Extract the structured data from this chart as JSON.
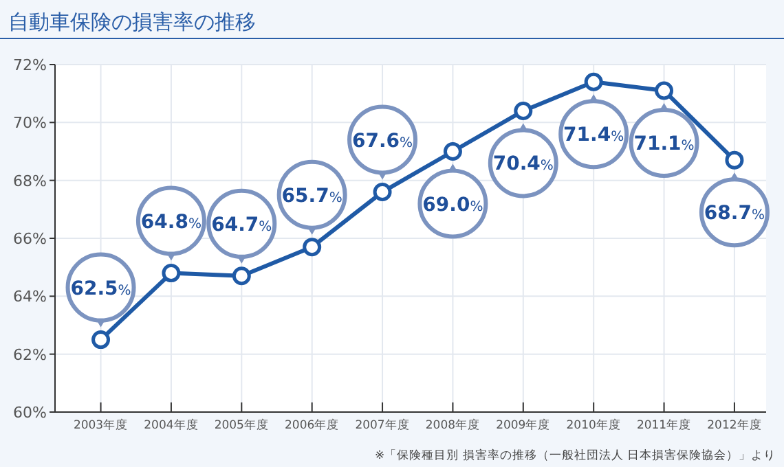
{
  "chart_data": {
    "type": "line",
    "title": "自動車保険の損害率の推移",
    "categories": [
      "2003年度",
      "2004年度",
      "2005年度",
      "2006年度",
      "2007年度",
      "2008年度",
      "2009年度",
      "2010年度",
      "2011年度",
      "2012年度"
    ],
    "series": [
      {
        "color": "#1f5aa6",
        "values": [
          62.5,
          64.8,
          64.7,
          65.7,
          67.6,
          69.0,
          70.4,
          71.4,
          71.1,
          68.7
        ],
        "value_labels": [
          "62.5%",
          "64.8%",
          "64.7%",
          "65.7%",
          "67.6%",
          "69.0%",
          "70.4%",
          "71.4%",
          "71.1%",
          "68.7%"
        ]
      }
    ],
    "ylim": [
      60,
      72
    ],
    "yticks": [
      {
        "value": 60,
        "label": "60%"
      },
      {
        "value": 62,
        "label": "62%"
      },
      {
        "value": 64,
        "label": "64%"
      },
      {
        "value": 66,
        "label": "66%"
      },
      {
        "value": 68,
        "label": "68%"
      },
      {
        "value": 70,
        "label": "70%"
      },
      {
        "value": 72,
        "label": "72%"
      }
    ],
    "grid": true,
    "marker": "circle",
    "line_style": "solid",
    "annotations": [
      "※「保険種目別 損害率の推移（一般社団法人 日本損害保険協会）」より"
    ]
  }
}
